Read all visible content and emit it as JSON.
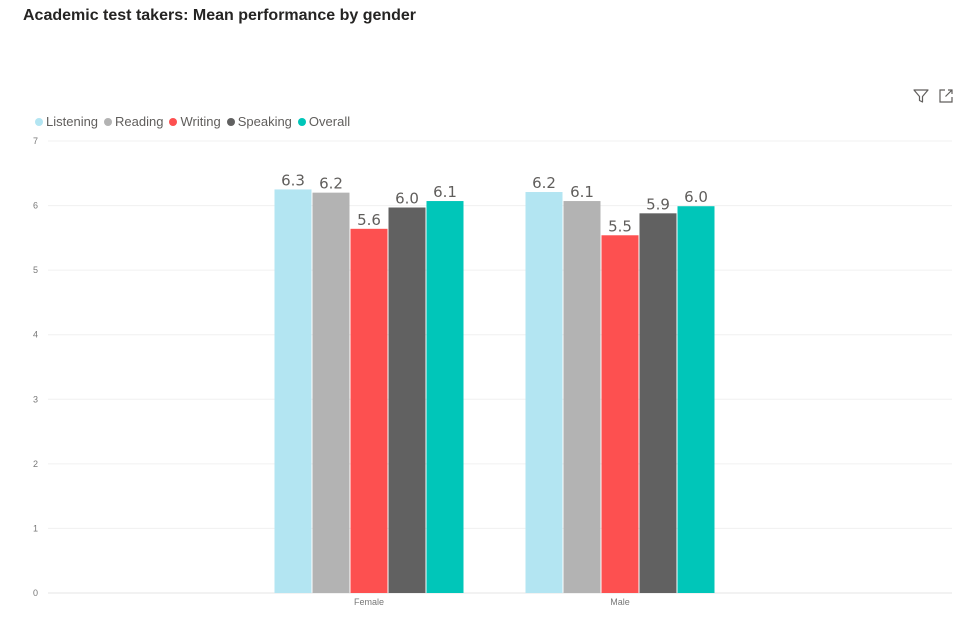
{
  "title": "Academic test takers: Mean performance by gender",
  "toolbar": {
    "icons": [
      "filter-icon",
      "focus-mode-icon"
    ]
  },
  "colors": {
    "gridline": "#f0f0f0",
    "axis_text": "#777777",
    "label_text": "#605e5c"
  },
  "chart_data": {
    "type": "bar",
    "title": "Academic test takers: Mean performance by gender",
    "xlabel": "",
    "ylabel": "",
    "categories": [
      "Female",
      "Male"
    ],
    "ylim": [
      0,
      7
    ],
    "yticks": [
      0,
      1,
      2,
      3,
      4,
      5,
      6,
      7
    ],
    "grid": true,
    "legend_position": "top-left",
    "series": [
      {
        "name": "Listening",
        "color": "#b3e5f2",
        "values": [
          6.25,
          6.21
        ],
        "labels": [
          "6.3",
          "6.2"
        ]
      },
      {
        "name": "Reading",
        "color": "#b3b3b3",
        "values": [
          6.2,
          6.07
        ],
        "labels": [
          "6.2",
          "6.1"
        ]
      },
      {
        "name": "Writing",
        "color": "#fd5050",
        "values": [
          5.64,
          5.54
        ],
        "labels": [
          "5.6",
          "5.5"
        ]
      },
      {
        "name": "Speaking",
        "color": "#616161",
        "values": [
          5.97,
          5.88
        ],
        "labels": [
          "6.0",
          "5.9"
        ]
      },
      {
        "name": "Overall",
        "color": "#00c6b9",
        "values": [
          6.07,
          5.99
        ],
        "labels": [
          "6.1",
          "6.0"
        ]
      }
    ]
  }
}
